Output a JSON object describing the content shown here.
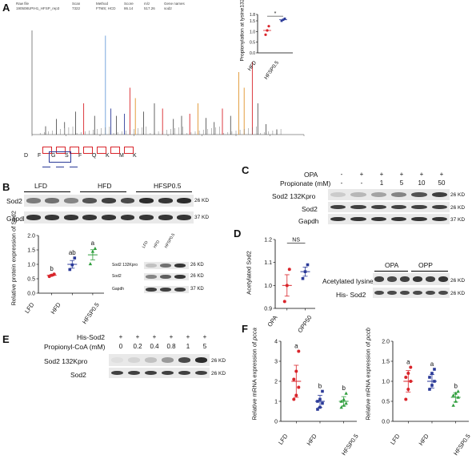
{
  "panel_labels": {
    "A": "A",
    "B": "B",
    "C": "C",
    "D": "D",
    "E": "E",
    "F": "F"
  },
  "panelA": {
    "header": {
      "cols": [
        "Raw file",
        "Scan",
        "Method",
        "Score",
        "m/z",
        "Gene names"
      ],
      "values": [
        "190508UPIH1_HFSP_rep3",
        "7322",
        "FTMS; HCD",
        "86.14",
        "517.26",
        "sod2"
      ]
    },
    "peptide": [
      "D",
      "F",
      "G",
      "S",
      "F",
      "Q",
      "K",
      "M",
      "K"
    ],
    "ion_labels": [
      "b",
      "y",
      "b-H2O",
      "y-H2O",
      "y-NH3"
    ],
    "inset": {
      "ylabel": "Propionylation at lysine132",
      "yticks": [
        "1.8",
        "1.5",
        "1.0",
        "0.5",
        "0.0"
      ],
      "groups": [
        "HFD",
        "HFSP0.5"
      ],
      "sig": "*"
    }
  },
  "panelB": {
    "groups": [
      "LFD",
      "HFD",
      "HFSP0.5"
    ],
    "row_labels": [
      "Sod2",
      "Gapdh"
    ],
    "mw": [
      "26 KD",
      "37 KD"
    ],
    "chart_data": {
      "type": "scatter",
      "ylabel": "Relative protein expression of Sod2",
      "categories": [
        "LFD",
        "HFD",
        "HFSP0.5"
      ],
      "series": [
        {
          "values": [
            [
              0.58,
              0.62,
              0.66
            ],
            [
              0.82,
              0.98,
              1.22
            ],
            [
              1.02,
              1.45,
              1.55
            ]
          ]
        }
      ],
      "means": [
        0.62,
        1.0,
        1.33
      ],
      "ylim": [
        0.0,
        2.0
      ],
      "yticks": [
        "2.0",
        "1.5",
        "1.0",
        "0.5",
        "0.0"
      ],
      "letters": [
        "b",
        "ab",
        "a"
      ],
      "colors": [
        "#d9252b",
        "#2b3a98",
        "#2e9e3c"
      ]
    },
    "small_blot": {
      "lanes": [
        "LFD",
        "HFD",
        "HFSP0.5"
      ],
      "rows": [
        "Sod2 132Kpro",
        "Sod2",
        "Gapdh"
      ],
      "mw": [
        "26 KD",
        "26 KD",
        "37 KD"
      ]
    }
  },
  "panelC": {
    "row_opa": "OPA",
    "row_prop": "Propionate (mM)",
    "opa_vals": [
      "-",
      "+",
      "+",
      "+",
      "+",
      "+"
    ],
    "prop_vals": [
      "-",
      "-",
      "1",
      "5",
      "10",
      "50"
    ],
    "rows": [
      "Sod2 132Kpro",
      "Sod2",
      "Gapdh"
    ],
    "mw": [
      "26 KD",
      "26 KD",
      "37 KD"
    ]
  },
  "panelD": {
    "chart_data": {
      "type": "scatter",
      "ylabel": "Acetylated Sod2",
      "categories": [
        "OPA",
        "OPP50"
      ],
      "series": [
        {
          "values": [
            [
              0.93,
              1.0,
              1.07
            ],
            [
              1.03,
              1.06,
              1.09
            ]
          ]
        }
      ],
      "means": [
        1.0,
        1.06
      ],
      "ylim": [
        0.9,
        1.2
      ],
      "yticks": [
        "1.2",
        "1.1",
        "1.0",
        "0.9"
      ],
      "sig": "NS",
      "colors": [
        "#d9252b",
        "#2b3a98"
      ]
    },
    "blot": {
      "lanes": [
        "OPA",
        "OPP"
      ],
      "rows": [
        "Acetylated lysine",
        "His- Sod2"
      ],
      "mw": [
        "26 KD",
        "26 KD"
      ]
    }
  },
  "panelE": {
    "row_his": "His-Sod2",
    "row_prop": "Propionyl-CoA  (mM)",
    "his_vals": [
      "+",
      "+",
      "+",
      "+",
      "+",
      "+"
    ],
    "prop_vals": [
      "0",
      "0.2",
      "0.4",
      "0.8",
      "1",
      "5"
    ],
    "rows": [
      "Sod2 132Kpro",
      "Sod2"
    ],
    "mw": [
      "26 KD",
      "26 KD"
    ]
  },
  "panelF": {
    "charts": [
      {
        "type": "scatter",
        "ylabel_prefix": "Relative mRNA expression of ",
        "gene": "pcca",
        "categories": [
          "LFD",
          "HFD",
          "HFSP0.5"
        ],
        "series": [
          {
            "values": [
              [
                1.1,
                1.3,
                1.7,
                2.1,
                2.5,
                3.5
              ],
              [
                0.6,
                0.7,
                0.9,
                1.0,
                1.1,
                1.5
              ],
              [
                0.7,
                0.8,
                0.9,
                1.0,
                1.1,
                1.4
              ]
            ]
          }
        ],
        "means": [
          2.0,
          1.0,
          1.0
        ],
        "ylim": [
          0,
          4
        ],
        "yticks": [
          "4",
          "3",
          "2",
          "1",
          "0"
        ],
        "letters": [
          "a",
          "b",
          "b"
        ],
        "colors": [
          "#d9252b",
          "#2b3a98",
          "#2e9e3c"
        ]
      },
      {
        "type": "scatter",
        "ylabel_prefix": "Relative mRNA expression of ",
        "gene": "pccb",
        "categories": [
          "LFD",
          "HFD",
          "HFSP0.5"
        ],
        "series": [
          {
            "values": [
              [
                0.55,
                0.8,
                1.0,
                1.1,
                1.2,
                1.35
              ],
              [
                0.8,
                0.9,
                1.0,
                1.1,
                1.2,
                1.3
              ],
              [
                0.4,
                0.5,
                0.6,
                0.65,
                0.7,
                0.75
              ]
            ]
          }
        ],
        "means": [
          1.0,
          1.0,
          0.6
        ],
        "ylim": [
          0.0,
          2.0
        ],
        "yticks": [
          "2.0",
          "1.5",
          "1.0",
          "0.5",
          "0.0"
        ],
        "letters": [
          "a",
          "a",
          "b"
        ],
        "colors": [
          "#d9252b",
          "#2b3a98",
          "#2e9e3c"
        ]
      }
    ]
  }
}
